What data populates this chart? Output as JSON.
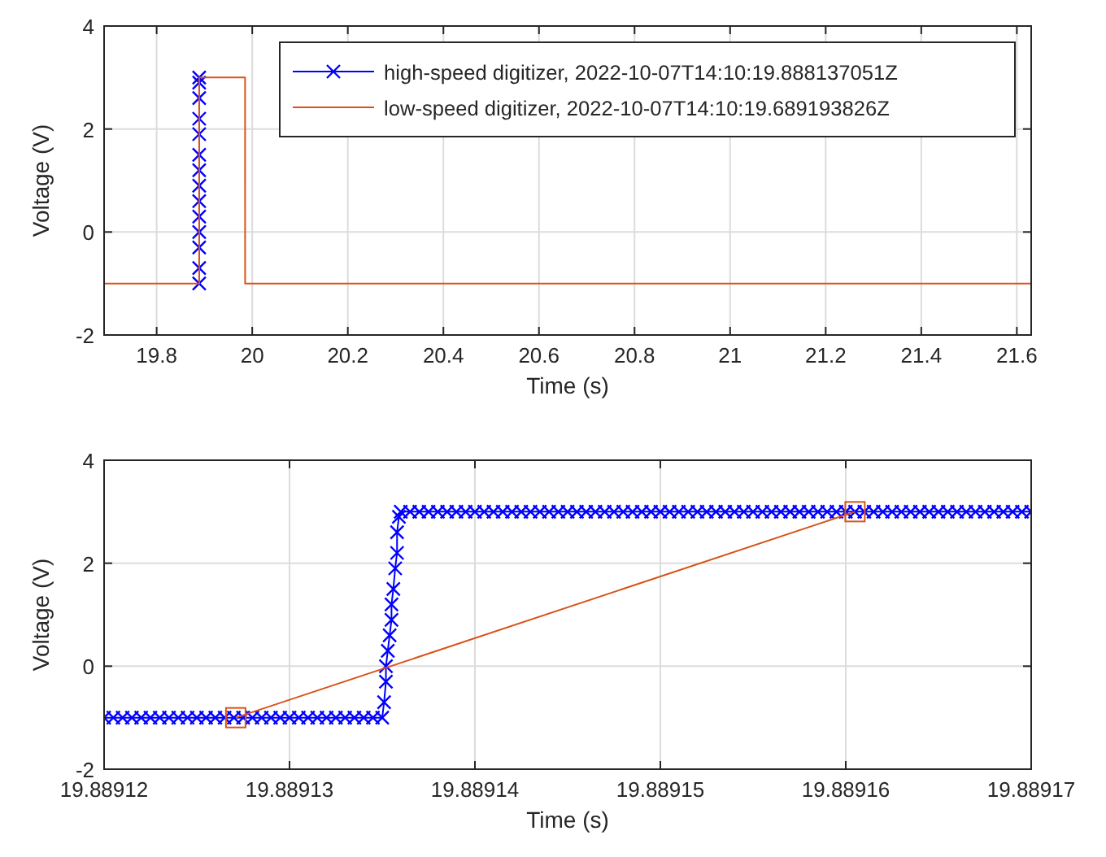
{
  "chart_data": [
    {
      "type": "line",
      "xlabel": "Time (s)",
      "ylabel": "Voltage (V)",
      "xlim": [
        19.69,
        21.63
      ],
      "ylim": [
        -2,
        4
      ],
      "xticks": [
        19.8,
        20,
        20.2,
        20.4,
        20.6,
        20.8,
        21,
        21.2,
        21.4,
        21.6
      ],
      "yticks": [
        -2,
        0,
        2,
        4
      ],
      "grid": true,
      "legend": "top right",
      "series": [
        {
          "name": "high-speed digitizer, 2022-10-07T14:10:19.888137051Z",
          "color": "#0000ff",
          "marker": "cross",
          "x": [
            19.889,
            19.889,
            19.889,
            19.889,
            19.889,
            19.889,
            19.889,
            19.889,
            19.889,
            19.889,
            19.889,
            19.889,
            19.889,
            19.889
          ],
          "values": [
            -1,
            -0.7,
            -0.3,
            0,
            0.3,
            0.6,
            0.9,
            1.2,
            1.5,
            1.9,
            2.2,
            2.6,
            2.9,
            3
          ]
        },
        {
          "name": "low-speed digitizer, 2022-10-07T14:10:19.689193826Z",
          "color": "#d95319",
          "marker": "none",
          "x": [
            19.69,
            19.8891271,
            19.8891605,
            19.985,
            19.9851,
            21.63
          ],
          "values": [
            -1,
            -1,
            3,
            3,
            -1,
            -1
          ]
        }
      ]
    },
    {
      "type": "line",
      "xlabel": "Time (s)",
      "ylabel": "Voltage (V)",
      "xlim": [
        19.88912,
        19.88917
      ],
      "ylim": [
        -2,
        4
      ],
      "xticks": [
        19.88912,
        19.88913,
        19.88914,
        19.88915,
        19.88916,
        19.88917
      ],
      "yticks": [
        -2,
        0,
        2,
        4
      ],
      "grid": true,
      "series": [
        {
          "color": "#0000ff",
          "marker": "cross",
          "x": [
            19.88912,
            19.8891205,
            19.889121,
            19.8891215,
            19.889122,
            19.8891225,
            19.889123,
            19.8891235,
            19.889124,
            19.8891245,
            19.889125,
            19.8891255,
            19.889126,
            19.8891265,
            19.889127,
            19.8891275,
            19.889128,
            19.8891285,
            19.889129,
            19.8891295,
            19.88913,
            19.8891305,
            19.889131,
            19.8891315,
            19.889132,
            19.8891325,
            19.889133,
            19.8891335,
            19.889134,
            19.8891345,
            19.889135,
            19.8891351,
            19.8891352,
            19.8891352,
            19.8891353,
            19.8891354,
            19.8891355,
            19.8891355,
            19.8891356,
            19.8891357,
            19.8891358,
            19.8891358,
            19.8891359,
            19.889136,
            19.8891365,
            19.889137,
            19.8891375,
            19.889138,
            19.8891385,
            19.889139,
            19.8891395,
            19.88914,
            19.8891405,
            19.889141,
            19.8891415,
            19.889142,
            19.8891425,
            19.889143,
            19.8891435,
            19.889144,
            19.8891445,
            19.889145,
            19.8891455,
            19.889146,
            19.8891465,
            19.889147,
            19.8891475,
            19.889148,
            19.8891485,
            19.889149,
            19.8891495,
            19.88915,
            19.8891505,
            19.889151,
            19.8891515,
            19.889152,
            19.8891525,
            19.889153,
            19.8891535,
            19.889154,
            19.8891545,
            19.889155,
            19.8891555,
            19.889156,
            19.8891565,
            19.889157,
            19.8891575,
            19.889158,
            19.8891585,
            19.889159,
            19.8891595,
            19.88916,
            19.8891605,
            19.889161,
            19.8891615,
            19.889162,
            19.8891625,
            19.889163,
            19.8891635,
            19.889164,
            19.8891645,
            19.889165,
            19.8891655,
            19.889166,
            19.8891665,
            19.889167,
            19.8891675,
            19.889168,
            19.8891685,
            19.889169,
            19.8891695,
            19.88917
          ],
          "values": [
            -1,
            -1,
            -1,
            -1,
            -1,
            -1,
            -1,
            -1,
            -1,
            -1,
            -1,
            -1,
            -1,
            -1,
            -1,
            -1,
            -1,
            -1,
            -1,
            -1,
            -1,
            -1,
            -1,
            -1,
            -1,
            -1,
            -1,
            -1,
            -1,
            -1,
            -1,
            -0.7,
            -0.3,
            0,
            0.3,
            0.6,
            0.9,
            1.2,
            1.5,
            1.9,
            2.2,
            2.6,
            2.9,
            3,
            3,
            3,
            3,
            3,
            3,
            3,
            3,
            3,
            3,
            3,
            3,
            3,
            3,
            3,
            3,
            3,
            3,
            3,
            3,
            3,
            3,
            3,
            3,
            3,
            3,
            3,
            3,
            3,
            3,
            3,
            3,
            3,
            3,
            3,
            3,
            3,
            3,
            3,
            3,
            3,
            3,
            3,
            3,
            3,
            3,
            3,
            3,
            3,
            3,
            3,
            3,
            3,
            3,
            3,
            3,
            3,
            3,
            3,
            3,
            3,
            3,
            3,
            3,
            3,
            3,
            3,
            3,
            3
          ]
        },
        {
          "color": "#d95319",
          "marker": "square",
          "x": [
            19.8891271,
            19.8891605
          ],
          "values": [
            -1,
            3
          ]
        }
      ]
    }
  ]
}
